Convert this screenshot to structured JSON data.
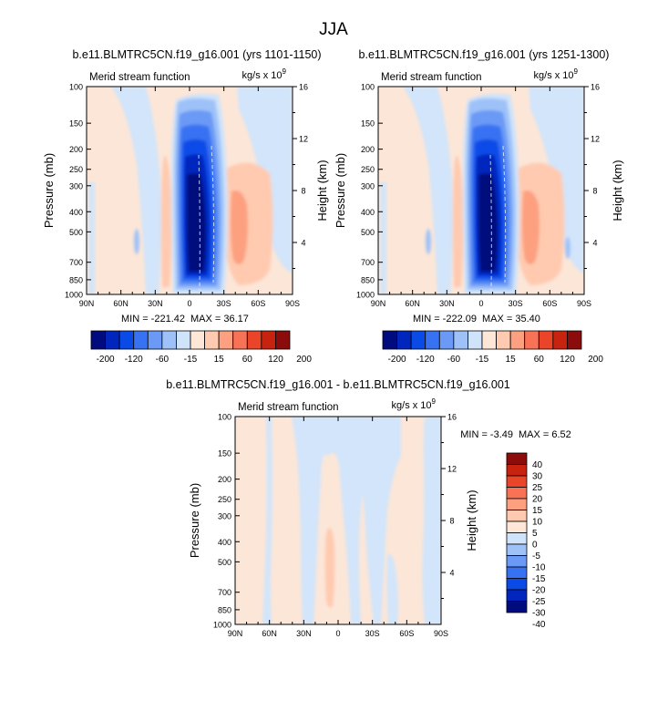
{
  "figure_title": "JJA",
  "chart_data": [
    {
      "type": "contour",
      "title": "b.e11.BLMTRC5CN.f19_g16.001 (yrs 1101-1150)",
      "left_label": "Merid stream function",
      "units": "kg/s x 10",
      "units_exp": "9",
      "xlabel": "",
      "ylabel": "Pressure (mb)",
      "ylabel_right": "Height (km)",
      "x_ticks": [
        "90N",
        "60N",
        "30N",
        "0",
        "30S",
        "60S",
        "90S"
      ],
      "y_ticks": [
        "100",
        "150",
        "200",
        "250",
        "300",
        "400",
        "500",
        "700",
        "850",
        "1000"
      ],
      "y_right_ticks": [
        "16",
        "12",
        "8",
        "4"
      ],
      "min_label": "MIN = -221.42",
      "max_label": "MAX = 36.17",
      "min": -221.42,
      "max": 36.17,
      "colorbar_levels": [
        "-200",
        "-120",
        "-60",
        "-15",
        "15",
        "60",
        "120",
        "200"
      ]
    },
    {
      "type": "contour",
      "title": "b.e11.BLMTRC5CN.f19_g16.001 (yrs 1251-1300)",
      "left_label": "Merid stream function",
      "units": "kg/s x 10",
      "units_exp": "9",
      "xlabel": "",
      "ylabel": "Pressure (mb)",
      "ylabel_right": "Height (km)",
      "x_ticks": [
        "90N",
        "60N",
        "30N",
        "0",
        "30S",
        "60S",
        "90S"
      ],
      "y_ticks": [
        "100",
        "150",
        "200",
        "250",
        "300",
        "400",
        "500",
        "700",
        "850",
        "1000"
      ],
      "y_right_ticks": [
        "16",
        "12",
        "8",
        "4"
      ],
      "min_label": "MIN = -222.09",
      "max_label": "MAX = 35.40",
      "min": -222.09,
      "max": 35.4,
      "colorbar_levels": [
        "-200",
        "-120",
        "-60",
        "-15",
        "15",
        "60",
        "120",
        "200"
      ]
    },
    {
      "type": "contour",
      "title": "b.e11.BLMTRC5CN.f19_g16.001 - b.e11.BLMTRC5CN.f19_g16.001",
      "left_label": "Merid stream function",
      "units": "kg/s x 10",
      "units_exp": "9",
      "xlabel": "",
      "ylabel": "Pressure (mb)",
      "ylabel_right": "Height (km)",
      "x_ticks": [
        "90N",
        "60N",
        "30N",
        "0",
        "30S",
        "60S",
        "90S"
      ],
      "y_ticks": [
        "100",
        "150",
        "200",
        "250",
        "300",
        "400",
        "500",
        "700",
        "850",
        "1000"
      ],
      "y_right_ticks": [
        "16",
        "12",
        "8",
        "4"
      ],
      "min_label": "MIN = -3.49",
      "max_label": "MAX = 6.52",
      "min": -3.49,
      "max": 6.52,
      "colorbar_levels": [
        "40",
        "30",
        "25",
        "20",
        "15",
        "10",
        "5",
        "0",
        "-5",
        "-10",
        "-15",
        "-20",
        "-25",
        "-30",
        "-40"
      ]
    }
  ],
  "colors": {
    "abs_cb": [
      "#000c7d",
      "#0026be",
      "#0a4be8",
      "#3772f2",
      "#6a9af6",
      "#9ec2f8",
      "#cfe3fa",
      "#ffe7d8",
      "#ffcab0",
      "#fca080",
      "#f87356",
      "#ea4528",
      "#c8230e",
      "#8c0b0b"
    ],
    "diff_cb": [
      "#000c7d",
      "#0026be",
      "#0a4be8",
      "#3772f2",
      "#6a9af6",
      "#9ec2f8",
      "#cfe3fa",
      "#ffe7d8",
      "#ffcab0",
      "#fca080",
      "#f87356",
      "#ea4528",
      "#c8230e",
      "#8c0b0b"
    ],
    "pos_light": "#fce6d8",
    "neg_light": "#d2e5fa"
  }
}
